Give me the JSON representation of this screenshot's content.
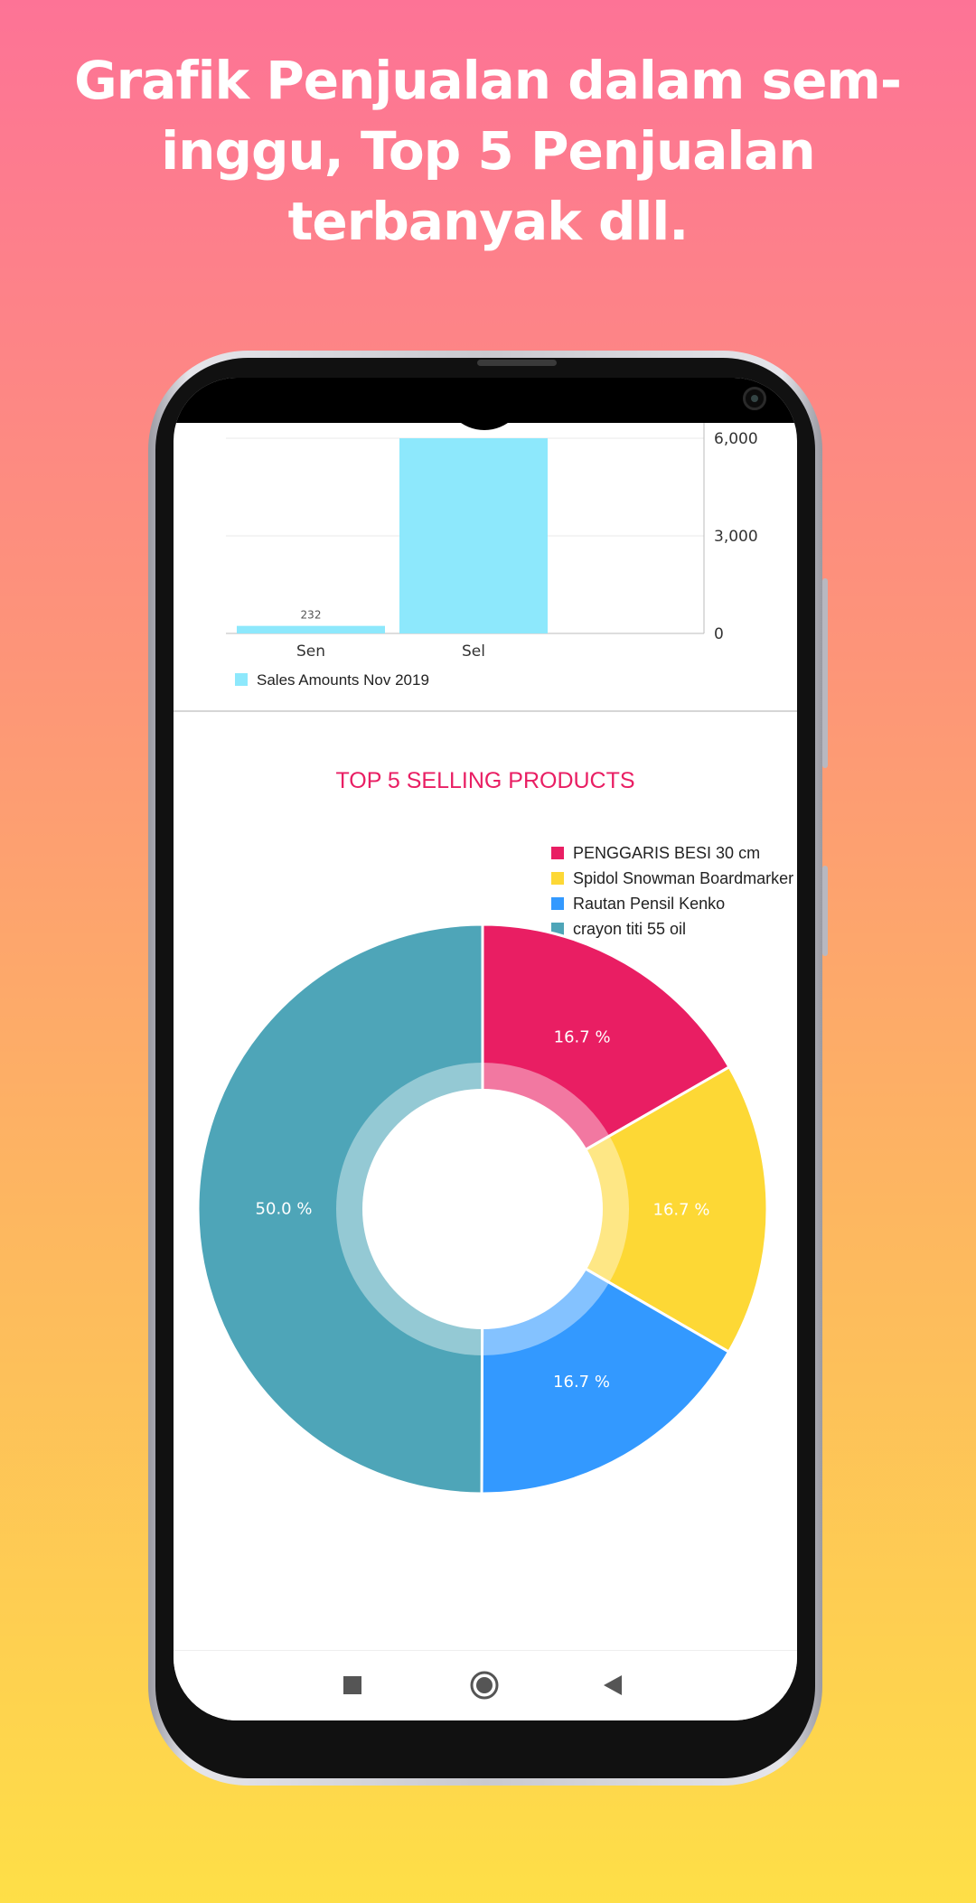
{
  "promo": {
    "title": "Grafik Penjualan dalam sem­inggu, Top 5 Penjualan terbanyak dll."
  },
  "colors": {
    "pink": "#E91E63",
    "yellow": "#FDD835",
    "blue": "#3399FF",
    "teal": "#4EA5B8",
    "bar": "#8DE8FC"
  },
  "chart_data": [
    {
      "type": "bar",
      "categories": [
        "Sen",
        "Sel"
      ],
      "series": [
        {
          "name": "Sales Amounts Nov 2019",
          "values": [
            232,
            6000
          ]
        }
      ],
      "data_labels": [
        "232",
        ""
      ],
      "y_ticks": [
        "0",
        "3,000",
        "6,000"
      ],
      "ylim": [
        0,
        6000
      ],
      "y_axis_side": "right",
      "grid": true,
      "legend": "bottom-left"
    },
    {
      "type": "pie",
      "title": "TOP 5 SELLING PRODUCTS",
      "labels": [
        "PENGGARIS BESI 30 cm",
        "Spidol Snowman Boardmarker",
        "Rautan Pensil Kenko",
        "crayon titi 55 oil"
      ],
      "values": [
        16.7,
        16.7,
        16.7,
        50.0
      ],
      "value_labels": [
        "16.7 %",
        "16.7 %",
        "16.7 %",
        "50.0 %"
      ],
      "colors": [
        "#E91E63",
        "#FDD835",
        "#3399FF",
        "#4EA5B8"
      ],
      "legend": "top-right",
      "hole": true
    }
  ],
  "nav": {
    "recents": "square-icon",
    "home": "circle-icon",
    "back": "triangle-back-icon"
  }
}
